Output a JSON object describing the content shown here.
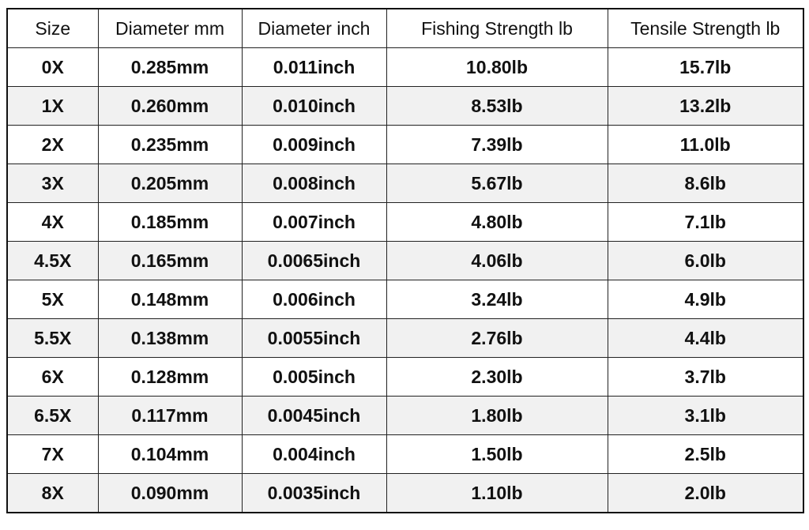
{
  "table": {
    "header": [
      "Size",
      "Diameter mm",
      "Diameter inch",
      "Fishing Strength lb",
      "Tensile Strength lb"
    ],
    "rows": [
      [
        "0X",
        "0.285mm",
        "0.011inch",
        "10.80lb",
        "15.7lb"
      ],
      [
        "1X",
        "0.260mm",
        "0.010inch",
        "8.53lb",
        "13.2lb"
      ],
      [
        "2X",
        "0.235mm",
        "0.009inch",
        "7.39lb",
        "11.0lb"
      ],
      [
        "3X",
        "0.205mm",
        "0.008inch",
        "5.67lb",
        "8.6lb"
      ],
      [
        "4X",
        "0.185mm",
        "0.007inch",
        "4.80lb",
        "7.1lb"
      ],
      [
        "4.5X",
        "0.165mm",
        "0.0065inch",
        "4.06lb",
        "6.0lb"
      ],
      [
        "5X",
        "0.148mm",
        "0.006inch",
        "3.24lb",
        "4.9lb"
      ],
      [
        "5.5X",
        "0.138mm",
        "0.0055inch",
        "2.76lb",
        "4.4lb"
      ],
      [
        "6X",
        "0.128mm",
        "0.005inch",
        "2.30lb",
        "3.7lb"
      ],
      [
        "6.5X",
        "0.117mm",
        "0.0045inch",
        "1.80lb",
        "3.1lb"
      ],
      [
        "7X",
        "0.104mm",
        "0.004inch",
        "1.50lb",
        "2.5lb"
      ],
      [
        "8X",
        "0.090mm",
        "0.0035inch",
        "1.10lb",
        "2.0lb"
      ]
    ]
  }
}
